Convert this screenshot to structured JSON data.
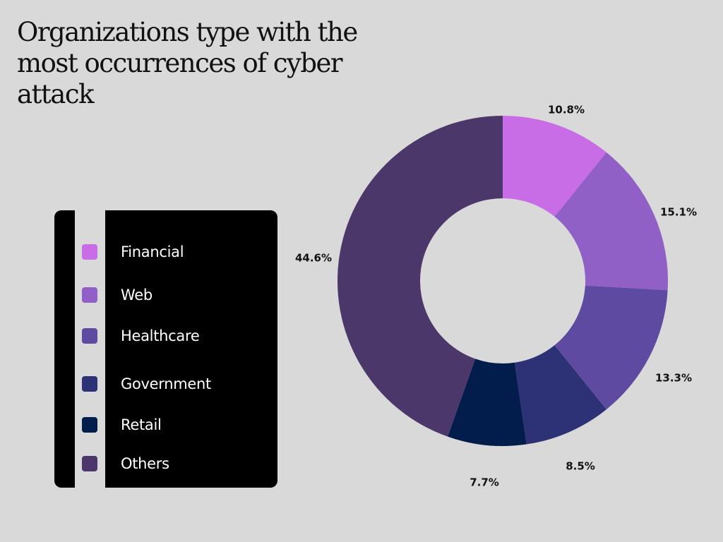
{
  "chart_data": {
    "type": "pie",
    "title": "Organizations type with the most occurrences of cyber attack",
    "categories": [
      "Financial",
      "Web",
      "Healthcare",
      "Government",
      "Retail",
      "Others"
    ],
    "values": [
      10.8,
      15.1,
      13.3,
      8.5,
      7.7,
      44.6
    ],
    "value_labels": [
      "10.8%",
      "15.1%",
      "13.3%",
      "8.5%",
      "7.7%",
      "44.6%"
    ],
    "colors": [
      "#c86de6",
      "#9060c6",
      "#5e4aa0",
      "#2d3175",
      "#021c4c",
      "#4c376b"
    ],
    "donut": true,
    "legend_position": "left"
  }
}
